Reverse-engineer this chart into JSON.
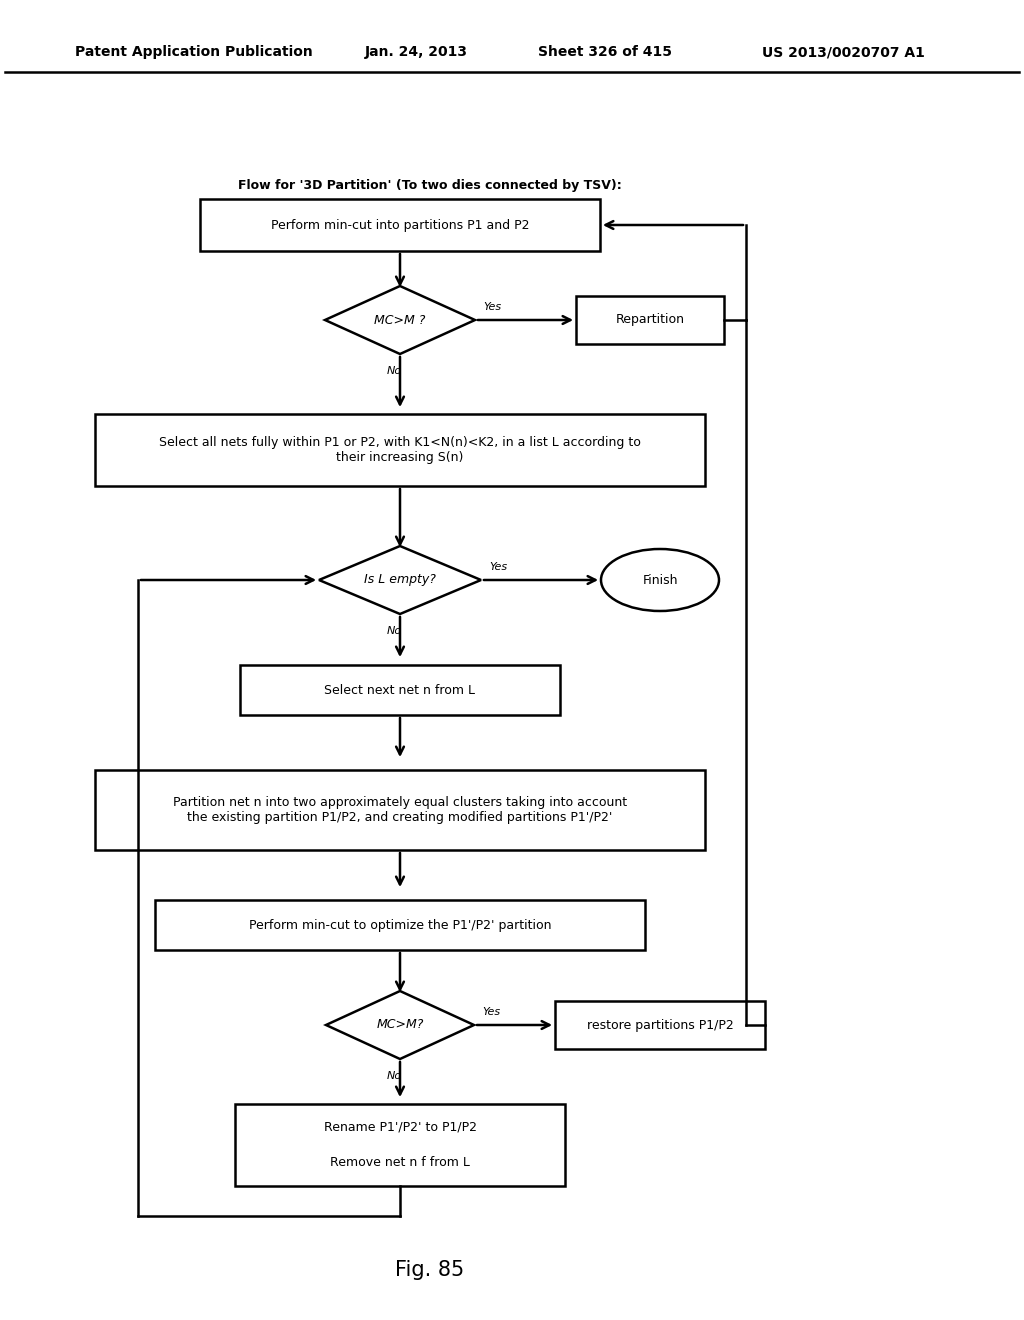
{
  "title_header": "Patent Application Publication",
  "title_date": "Jan. 24, 2013",
  "title_sheet": "Sheet 326 of 415",
  "title_patent": "US 2013/0020707 A1",
  "flow_title": "Flow for '3D Partition' (To two dies connected by TSV):",
  "fig_label": "Fig. 85",
  "background_color": "#ffffff",
  "box1_text": "Perform min-cut into partitions P1 and P2",
  "diamond1_text": "MC>M ?",
  "repartition_text": "Repartition",
  "box2_text": "Select all nets fully within P1 or P2, with K1<N(n)<K2, in a list L according to\ntheir increasing S(n)",
  "diamond2_text": "Is L empty?",
  "finish_text": "Finish",
  "box3_text": "Select next net n from L",
  "box4_text": "Partition net n into two approximately equal clusters taking into account\nthe existing partition P1/P2, and creating modified partitions P1'/P2'",
  "box5_text": "Perform min-cut to optimize the P1'/P2' partition",
  "diamond3_text": "MC>M?",
  "restore_text": "restore partitions P1/P2",
  "box6_line1": "Rename P1'/P2' to P1/P2",
  "box6_line2": "Remove net n f from L"
}
